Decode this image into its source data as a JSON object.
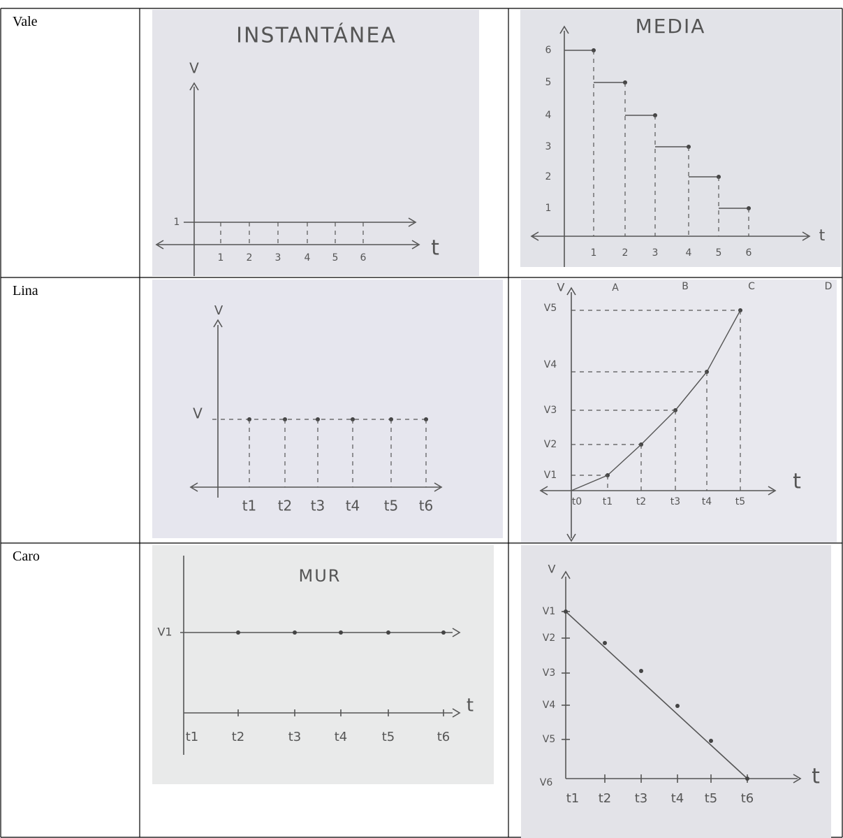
{
  "table": {
    "rows": [
      {
        "name": "Vale",
        "cells": [
          {
            "title": "INSTANTÁNEA",
            "labels": [
              "V",
              "1",
              "t",
              "1",
              "2",
              "3",
              "4",
              "5",
              "6"
            ]
          },
          {
            "title": "MEDIA",
            "labels": [
              "6",
              "5",
              "4",
              "3",
              "2",
              "1",
              "t",
              "1",
              "2",
              "3",
              "4",
              "5",
              "6"
            ]
          }
        ]
      },
      {
        "name": "Lina",
        "cells": [
          {
            "labels": [
              "V",
              "V",
              "t1",
              "t2",
              "t3",
              "t4",
              "t5",
              "t6"
            ]
          },
          {
            "labels": [
              "V",
              "A",
              "B",
              "C",
              "D",
              "V5",
              "V4",
              "V3",
              "V2",
              "V1",
              "t",
              "t0",
              "t1",
              "t2",
              "t3",
              "t4",
              "t5"
            ]
          }
        ]
      },
      {
        "name": "Caro",
        "cells": [
          {
            "title": "MUR",
            "labels": [
              "V1",
              "t",
              "t1",
              "t2",
              "t3",
              "t4",
              "t5",
              "t6"
            ]
          },
          {
            "labels": [
              "V",
              "V1",
              "V2",
              "V3",
              "V4",
              "V5",
              "V6",
              "t",
              "t1",
              "t2",
              "t3",
              "t4",
              "t5",
              "t6"
            ]
          }
        ]
      }
    ]
  }
}
